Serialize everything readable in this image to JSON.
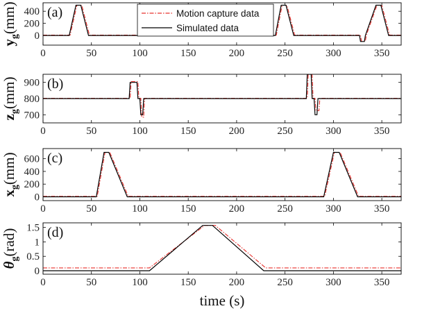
{
  "chart_data": [
    {
      "panel": "(a)",
      "type": "line",
      "ylabel": {
        "base": "y",
        "sub": "g",
        "unit": "(mm)"
      },
      "xlim": [
        0,
        370
      ],
      "ylim": [
        -160,
        540
      ],
      "xticks": [
        0,
        50,
        100,
        150,
        200,
        250,
        300,
        350
      ],
      "yticks": [
        0,
        200,
        400
      ],
      "legend": {
        "placement": "top-center",
        "entries": [
          "Motion capture data",
          "Simulated data"
        ]
      },
      "series": [
        {
          "name": "Simulated data",
          "color": "#000000",
          "style": "solid",
          "x": [
            0,
            27,
            34,
            39,
            47,
            240,
            246,
            251,
            259,
            327,
            328,
            332,
            333,
            344,
            349,
            357,
            370
          ],
          "y": [
            0,
            0,
            500,
            500,
            0,
            0,
            500,
            500,
            0,
            0,
            -100,
            -100,
            0,
            500,
            500,
            0,
            0
          ]
        },
        {
          "name": "Motion capture data",
          "color": "#e8302c",
          "style": "dashdot",
          "x": [
            0,
            28,
            35,
            40,
            48,
            241,
            247,
            252,
            260,
            328,
            329,
            333,
            334,
            345,
            350,
            358,
            370
          ],
          "y": [
            5,
            5,
            500,
            500,
            5,
            5,
            500,
            500,
            5,
            5,
            -95,
            -95,
            5,
            500,
            500,
            5,
            5
          ]
        }
      ]
    },
    {
      "panel": "(b)",
      "type": "line",
      "ylabel": {
        "base": "z",
        "sub": "g",
        "unit": "(mm)"
      },
      "xlim": [
        0,
        370
      ],
      "ylim": [
        650,
        950
      ],
      "xticks": [
        0,
        50,
        100,
        150,
        200,
        250,
        300,
        350
      ],
      "yticks": [
        700,
        800,
        900
      ],
      "series": [
        {
          "name": "Simulated data",
          "color": "#000000",
          "style": "solid",
          "x": [
            0,
            89,
            90,
            97,
            98,
            100,
            101,
            103,
            104,
            272,
            273,
            277,
            278,
            280,
            281,
            283,
            284,
            370
          ],
          "y": [
            800,
            800,
            900,
            900,
            800,
            800,
            700,
            700,
            800,
            800,
            950,
            950,
            800,
            800,
            700,
            700,
            800,
            800
          ]
        },
        {
          "name": "Motion capture data",
          "color": "#e8302c",
          "style": "dashdot",
          "x": [
            0,
            90,
            91,
            98,
            99,
            101,
            102,
            104,
            105,
            273,
            274,
            278,
            279,
            281,
            282,
            285,
            286,
            370
          ],
          "y": [
            802,
            802,
            905,
            905,
            802,
            802,
            685,
            685,
            802,
            802,
            950,
            950,
            802,
            802,
            725,
            725,
            802,
            802
          ]
        }
      ]
    },
    {
      "panel": "(c)",
      "type": "line",
      "ylabel": {
        "base": "x",
        "sub": "g",
        "unit": "(mm)"
      },
      "xlim": [
        0,
        370
      ],
      "ylim": [
        -60,
        760
      ],
      "xticks": [
        0,
        50,
        100,
        150,
        200,
        250,
        300,
        350
      ],
      "yticks": [
        0,
        200,
        400,
        600
      ],
      "series": [
        {
          "name": "Simulated data",
          "color": "#000000",
          "style": "solid",
          "x": [
            0,
            55,
            63,
            68,
            87,
            290,
            300,
            306,
            325,
            370
          ],
          "y": [
            0,
            0,
            700,
            700,
            0,
            0,
            700,
            700,
            0,
            0
          ]
        },
        {
          "name": "Motion capture data",
          "color": "#e8302c",
          "style": "dashdot",
          "x": [
            0,
            56,
            64,
            69,
            88,
            291,
            301,
            307,
            326,
            370
          ],
          "y": [
            8,
            8,
            700,
            700,
            8,
            8,
            700,
            700,
            8,
            8
          ]
        }
      ]
    },
    {
      "panel": "(d)",
      "type": "line",
      "ylabel": {
        "base": "θ",
        "sub": "g",
        "unit": "(rad)"
      },
      "xlim": [
        0,
        370
      ],
      "xlabel": "time (s)",
      "ylim": [
        -0.12,
        1.66
      ],
      "xticks": [
        0,
        50,
        100,
        150,
        200,
        250,
        300,
        350
      ],
      "yticks": [
        0,
        0.5,
        1,
        1.5
      ],
      "ytick_labels": [
        "0",
        "0.5",
        "1",
        "1.5"
      ],
      "series": [
        {
          "name": "Simulated data",
          "color": "#000000",
          "style": "solid",
          "x": [
            0,
            110,
            165,
            175,
            228,
            370
          ],
          "y": [
            0,
            0,
            1.57,
            1.57,
            0,
            0
          ]
        },
        {
          "name": "Motion capture data",
          "color": "#e8302c",
          "style": "dashdot",
          "x": [
            0,
            110,
            167,
            178,
            230,
            370
          ],
          "y": [
            0.1,
            0.1,
            1.57,
            1.57,
            0.1,
            0.1
          ]
        }
      ]
    }
  ]
}
